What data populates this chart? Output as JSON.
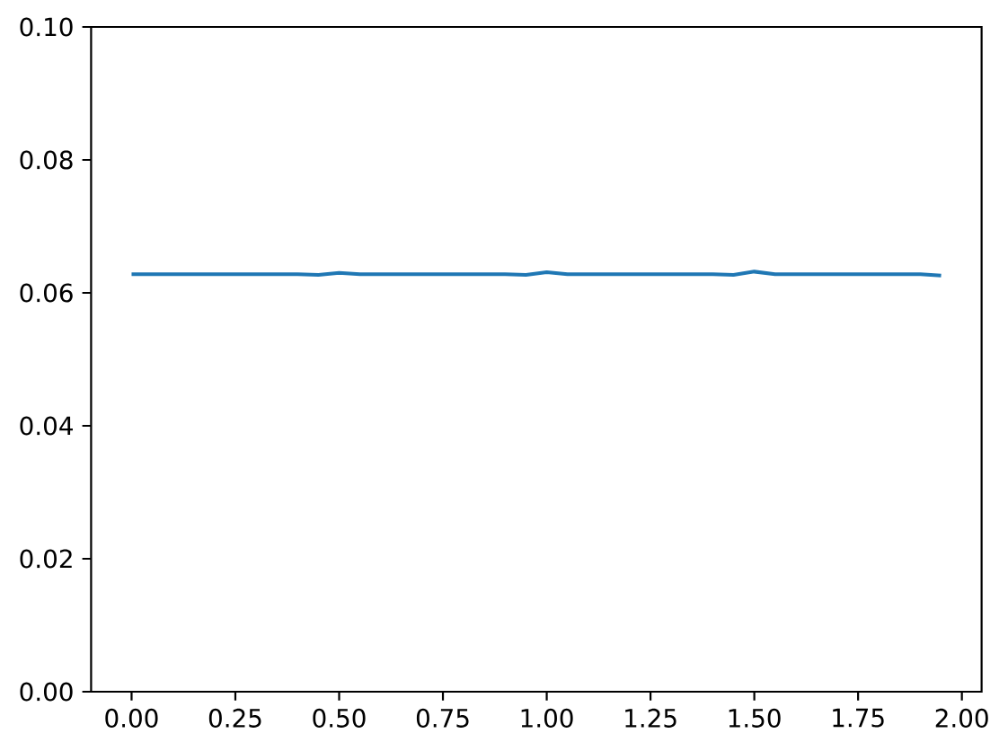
{
  "chart_data": {
    "type": "line",
    "x": [
      0,
      0.05,
      0.1,
      0.15,
      0.2,
      0.25,
      0.3,
      0.35,
      0.4,
      0.45,
      0.5,
      0.55,
      0.6,
      0.65,
      0.7,
      0.75,
      0.8,
      0.85,
      0.9,
      0.95,
      1.0,
      1.05,
      1.1,
      1.15,
      1.2,
      1.25,
      1.3,
      1.35,
      1.4,
      1.45,
      1.5,
      1.55,
      1.6,
      1.65,
      1.7,
      1.75,
      1.8,
      1.85,
      1.9,
      1.95
    ],
    "values": [
      0.0628,
      0.0628,
      0.0628,
      0.0628,
      0.0628,
      0.0628,
      0.0628,
      0.0628,
      0.0628,
      0.0627,
      0.063,
      0.0628,
      0.0628,
      0.0628,
      0.0628,
      0.0628,
      0.0628,
      0.0628,
      0.0628,
      0.0627,
      0.0631,
      0.0628,
      0.0628,
      0.0628,
      0.0628,
      0.0628,
      0.0628,
      0.0628,
      0.0628,
      0.0627,
      0.0632,
      0.0628,
      0.0628,
      0.0628,
      0.0628,
      0.0628,
      0.0628,
      0.0628,
      0.0628,
      0.0626
    ],
    "color": "#1f77b4",
    "xlim": [
      -0.0975,
      2.0475
    ],
    "ylim": [
      0,
      0.1
    ],
    "xticks": [
      {
        "value": 0,
        "label": "0.00"
      },
      {
        "value": 0.25,
        "label": "0.25"
      },
      {
        "value": 0.5,
        "label": "0.50"
      },
      {
        "value": 0.75,
        "label": "0.75"
      },
      {
        "value": 1.0,
        "label": "1.00"
      },
      {
        "value": 1.25,
        "label": "1.25"
      },
      {
        "value": 1.5,
        "label": "1.50"
      },
      {
        "value": 1.75,
        "label": "1.75"
      },
      {
        "value": 2.0,
        "label": "2.00"
      }
    ],
    "yticks": [
      {
        "value": 0,
        "label": "0.00"
      },
      {
        "value": 0.02,
        "label": "0.02"
      },
      {
        "value": 0.04,
        "label": "0.04"
      },
      {
        "value": 0.06,
        "label": "0.06"
      },
      {
        "value": 0.08,
        "label": "0.08"
      },
      {
        "value": 0.1,
        "label": "0.10"
      }
    ]
  }
}
